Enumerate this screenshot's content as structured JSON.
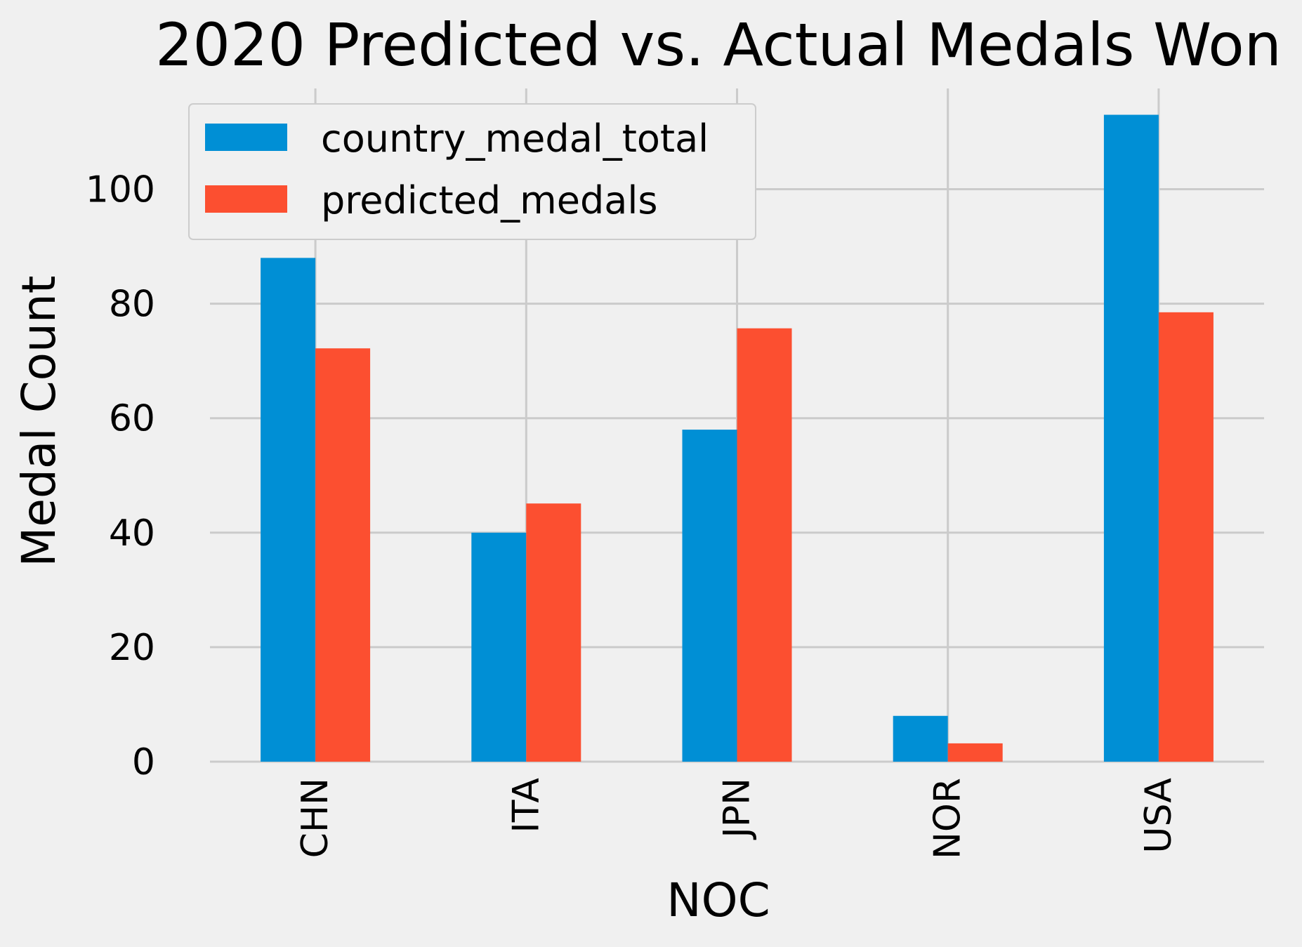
{
  "chart_data": {
    "type": "bar",
    "title": "2020 Predicted vs. Actual Medals Won",
    "xlabel": "NOC",
    "ylabel": "Medal Count",
    "categories": [
      "CHN",
      "ITA",
      "JPN",
      "NOR",
      "USA"
    ],
    "series": [
      {
        "name": "country_medal_total",
        "values": [
          88,
          40,
          58,
          8,
          113
        ],
        "color": "#008fd5"
      },
      {
        "name": "predicted_medals",
        "values": [
          72.2,
          45.1,
          75.7,
          3.2,
          78.5
        ],
        "color": "#fc4f30"
      }
    ],
    "ylim": [
      0,
      117.6
    ],
    "yticks": [
      0,
      20,
      40,
      60,
      80,
      100
    ],
    "grid": true,
    "legend_position": "top-left",
    "style": {
      "background": "#f0f0f0",
      "grid_color": "#cbcbcb"
    }
  }
}
